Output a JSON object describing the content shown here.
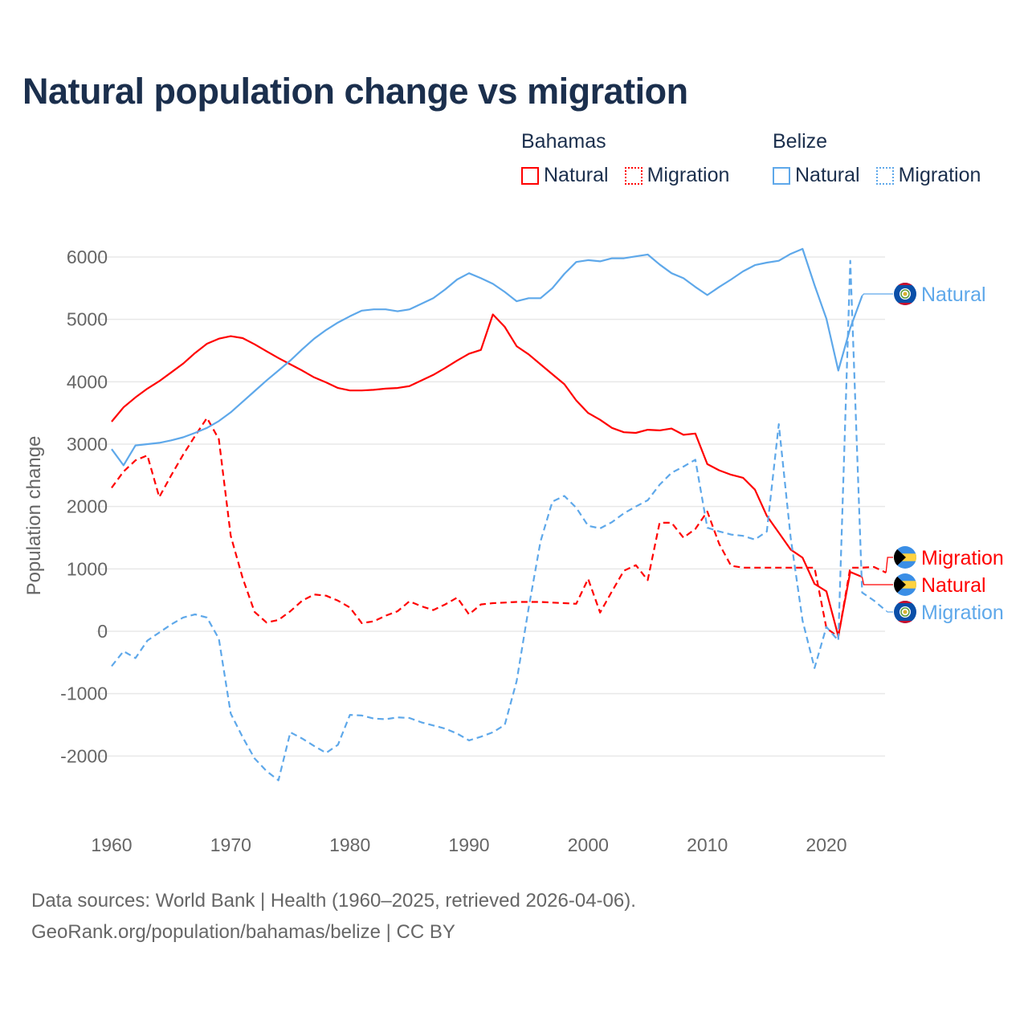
{
  "title": "Natural population change vs migration",
  "legend": {
    "groups": [
      {
        "name": "Bahamas",
        "items": [
          {
            "label": "Natural",
            "style": "solid"
          },
          {
            "label": "Migration",
            "style": "dotted"
          }
        ],
        "color": "#ff0000"
      },
      {
        "name": "Belize",
        "items": [
          {
            "label": "Natural",
            "style": "solid"
          },
          {
            "label": "Migration",
            "style": "dotted"
          }
        ],
        "color": "#5ea8ea"
      }
    ]
  },
  "footer": {
    "line1": "Data sources: World Bank | Health (1960–2025, retrieved 2026-04-06).",
    "line2": "GeoRank.org/population/bahamas/belize | CC BY"
  },
  "chart_data": {
    "type": "line",
    "title": "Natural population change vs migration",
    "xlabel": "",
    "ylabel": "Population change",
    "xlim": [
      1960,
      2025
    ],
    "ylim": [
      -2500,
      6200
    ],
    "x_ticks": [
      1960,
      1970,
      1980,
      1990,
      2000,
      2010,
      2020
    ],
    "y_ticks": [
      -2000,
      -1000,
      0,
      1000,
      2000,
      3000,
      4000,
      5000,
      6000
    ],
    "grid": true,
    "legend_position": "top-right",
    "start_year": 1960,
    "series": [
      {
        "name": "Bahamas Natural",
        "country": "Bahamas",
        "label": "Natural",
        "color": "#ff0000",
        "dashed": false,
        "flag": "bahamas",
        "values": [
          3360,
          3590,
          3750,
          3890,
          4010,
          4150,
          4290,
          4460,
          4610,
          4690,
          4730,
          4700,
          4600,
          4490,
          4380,
          4280,
          4180,
          4070,
          3990,
          3900,
          3860,
          3860,
          3870,
          3890,
          3900,
          3930,
          4020,
          4110,
          4220,
          4340,
          4450,
          4510,
          5080,
          4880,
          4570,
          4440,
          4280,
          4120,
          3960,
          3700,
          3500,
          3390,
          3260,
          3190,
          3180,
          3230,
          3220,
          3250,
          3150,
          3170,
          2680,
          2580,
          2510,
          2460,
          2270,
          1850,
          1580,
          1310,
          1180,
          760,
          640,
          -80,
          950,
          870
        ]
      },
      {
        "name": "Bahamas Migration",
        "country": "Bahamas",
        "label": "Migration",
        "color": "#ff0000",
        "dashed": true,
        "flag": "bahamas",
        "values": [
          2300,
          2560,
          2740,
          2820,
          2150,
          2500,
          2830,
          3130,
          3420,
          3080,
          1530,
          850,
          310,
          140,
          180,
          320,
          490,
          590,
          570,
          490,
          380,
          130,
          160,
          250,
          320,
          480,
          400,
          340,
          430,
          540,
          270,
          430,
          450,
          460,
          470,
          470,
          470,
          460,
          450,
          440,
          840,
          300,
          640,
          970,
          1060,
          820,
          1740,
          1740,
          1500,
          1640,
          1920,
          1400,
          1050,
          1020,
          1020,
          1020,
          1020,
          1020,
          1020,
          1020,
          50,
          -90,
          1020,
          1020,
          1030,
          940
        ]
      },
      {
        "name": "Belize Natural",
        "country": "Belize",
        "label": "Natural",
        "color": "#5ea8ea",
        "dashed": false,
        "flag": "belize",
        "values": [
          2920,
          2660,
          2980,
          3000,
          3020,
          3060,
          3110,
          3180,
          3260,
          3370,
          3510,
          3680,
          3850,
          4020,
          4180,
          4340,
          4520,
          4690,
          4830,
          4950,
          5050,
          5140,
          5160,
          5160,
          5130,
          5160,
          5250,
          5340,
          5480,
          5640,
          5740,
          5660,
          5570,
          5440,
          5290,
          5340,
          5340,
          5500,
          5730,
          5920,
          5950,
          5930,
          5980,
          5980,
          6010,
          6040,
          5880,
          5740,
          5660,
          5520,
          5390,
          5520,
          5640,
          5770,
          5870,
          5910,
          5940,
          6050,
          6130,
          5550,
          5010,
          4180,
          4860,
          5380
        ]
      },
      {
        "name": "Belize Migration",
        "country": "Belize",
        "label": "Migration",
        "color": "#5ea8ea",
        "dashed": true,
        "flag": "belize",
        "values": [
          -560,
          -320,
          -430,
          -150,
          -20,
          110,
          220,
          270,
          220,
          -120,
          -1320,
          -1700,
          -2040,
          -2240,
          -2390,
          -1620,
          -1720,
          -1840,
          -1950,
          -1820,
          -1340,
          -1350,
          -1400,
          -1410,
          -1380,
          -1390,
          -1460,
          -1510,
          -1560,
          -1640,
          -1750,
          -1690,
          -1620,
          -1500,
          -800,
          370,
          1440,
          2080,
          2170,
          1980,
          1690,
          1650,
          1750,
          1890,
          2000,
          2100,
          2350,
          2540,
          2640,
          2750,
          1660,
          1600,
          1550,
          1530,
          1470,
          1600,
          3320,
          1500,
          170,
          -590,
          70,
          -150,
          5940,
          620,
          490,
          330
        ]
      }
    ]
  }
}
